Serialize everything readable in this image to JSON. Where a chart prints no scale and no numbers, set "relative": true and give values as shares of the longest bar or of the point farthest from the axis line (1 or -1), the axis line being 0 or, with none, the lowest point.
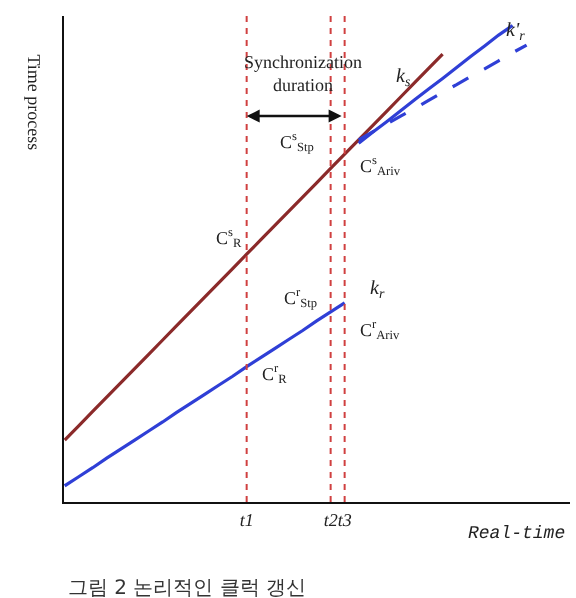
{
  "chart_data": {
    "type": "line",
    "relative": true,
    "title": "그림 2 논리적인 클럭 갱신",
    "xlabel": "Real-time",
    "ylabel": "Time process",
    "categories": [
      null,
      null,
      null,
      null,
      null,
      null,
      null,
      null,
      null,
      null,
      null,
      null,
      null,
      "t1",
      null,
      null,
      null,
      null,
      null,
      "t2",
      "t3",
      null,
      null,
      null,
      null,
      null,
      null,
      null,
      null,
      null,
      null,
      null,
      null,
      null,
      null,
      null,
      null
    ],
    "series": [
      {
        "name": "k$_{s}$",
        "color": "#8b2a2a",
        "line_style": "solid",
        "values": [
          0.13,
          0.16,
          0.19,
          0.22,
          0.25,
          0.28,
          0.31,
          0.34,
          0.37,
          0.4,
          0.43,
          0.46,
          0.49,
          0.52,
          0.55,
          0.58,
          0.61,
          0.64,
          0.67,
          0.7,
          0.73,
          0.76,
          0.79,
          0.82,
          0.85,
          0.88,
          0.91,
          0.94,
          null,
          null,
          null,
          null,
          null,
          null,
          null,
          null,
          null
        ]
      },
      {
        "name": "k$_{r}$",
        "color": "#2f3fd6",
        "line_style": "solid",
        "values": [
          0.034,
          0.053,
          0.072,
          0.092,
          0.111,
          0.13,
          0.149,
          0.168,
          0.188,
          0.207,
          0.226,
          0.245,
          0.264,
          0.284,
          0.303,
          0.322,
          0.341,
          0.36,
          0.38,
          0.399,
          0.418,
          null,
          null,
          null,
          null,
          null,
          null,
          null,
          null,
          null,
          null,
          null,
          null,
          null,
          null,
          null,
          null
        ]
      },
      {
        "name": "k'$_{r}$",
        "color": "#2f3fd6",
        "line_style": "solid",
        "values": [
          null,
          null,
          null,
          null,
          null,
          null,
          null,
          null,
          null,
          null,
          null,
          null,
          null,
          null,
          null,
          null,
          null,
          null,
          null,
          null,
          null,
          0.753,
          0.776,
          0.798,
          0.821,
          0.844,
          0.867,
          0.889,
          0.912,
          0.935,
          0.957,
          0.98,
          1.0,
          null,
          null,
          null,
          null
        ]
      },
      {
        "color": "#2f3fd6",
        "line_style": "dashed",
        "values": [
          null,
          null,
          null,
          null,
          null,
          null,
          null,
          null,
          null,
          null,
          null,
          null,
          null,
          null,
          null,
          null,
          null,
          null,
          null,
          null,
          null,
          0.76,
          0.777,
          0.793,
          0.81,
          0.826,
          0.843,
          0.86,
          0.876,
          0.893,
          0.909,
          0.926,
          0.943,
          0.959,
          null,
          null,
          null
        ]
      }
    ],
    "ref_lines": [
      {
        "axis": "x",
        "value": "t1",
        "color": "#d04040",
        "line_style": "dotted"
      },
      {
        "axis": "x",
        "value": "t2",
        "color": "#d04040",
        "line_style": "dotted"
      },
      {
        "axis": "x",
        "value": "t3",
        "color": "#d04040",
        "line_style": "dotted"
      }
    ],
    "annotations": [
      "Synchronization\nduration",
      "C$^{s}$$_{R}$",
      "C$^{s}$$_{Stp}$",
      "C$^{s}$$_{Ariv}$",
      "C$^{r}$$_{Stp}$",
      "C$^{r}$$_{Ariv}$",
      "C$^{r}$$_{R}$"
    ],
    "legend": false
  }
}
